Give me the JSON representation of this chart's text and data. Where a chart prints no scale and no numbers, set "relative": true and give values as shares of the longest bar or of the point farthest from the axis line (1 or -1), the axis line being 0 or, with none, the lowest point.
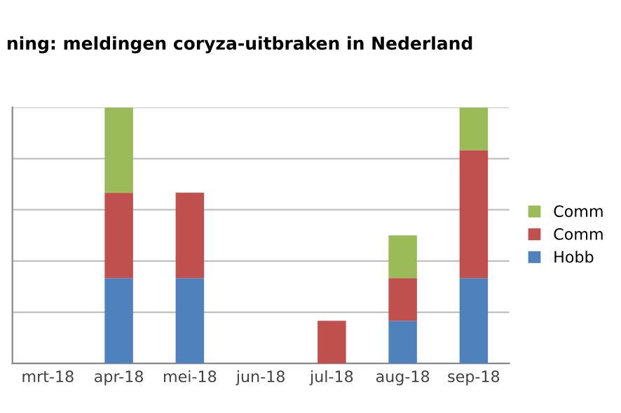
{
  "chart_data": {
    "type": "bar",
    "title": "ning: meldingen coryza-uitbraken in Nederland",
    "categories": [
      "mrt-18",
      "apr-18",
      "mei-18",
      "jun-18",
      "jul-18",
      "aug-18",
      "sep-18"
    ],
    "stacked": true,
    "relative": true,
    "grid": "y",
    "legend": "right",
    "series": [
      {
        "name": "Hobb",
        "color": "#4f81bd",
        "values": [
          0,
          0.3333,
          0.3333,
          0,
          0,
          0.1667,
          0.3333
        ]
      },
      {
        "name": "Comm",
        "color": "#c0504d",
        "values": [
          0,
          0.3333,
          0.3333,
          0,
          0.1667,
          0.1667,
          0.5
        ]
      },
      {
        "name": "Comm",
        "color": "#9bbb59",
        "values": [
          0,
          0.3333,
          0,
          0,
          0,
          0.1667,
          0.1667
        ]
      }
    ]
  }
}
